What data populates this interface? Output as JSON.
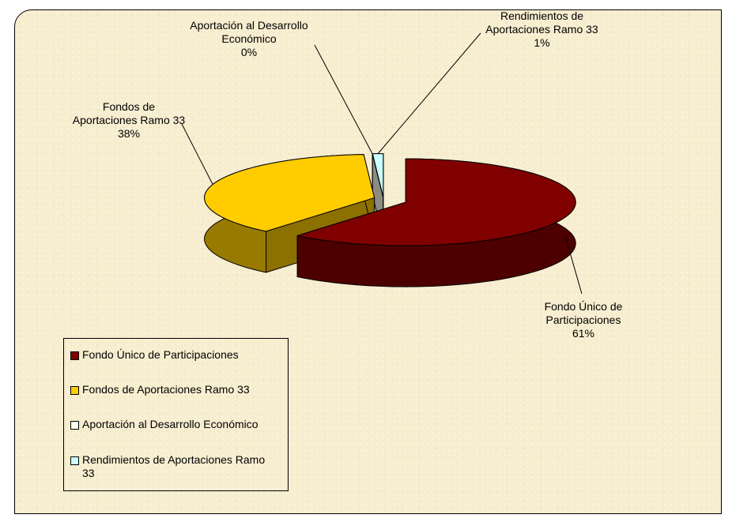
{
  "chart_data": {
    "type": "pie",
    "categories": [
      "Fondo Único de Participaciones",
      "Fondos de Aportaciones Ramo 33",
      "Aportación al Desarrollo Económico",
      "Rendimientos de Aportaciones Ramo 33"
    ],
    "values": [
      61,
      38,
      0,
      1
    ],
    "value_labels": [
      "61%",
      "38%",
      "0%",
      "1%"
    ],
    "colors": [
      "#800000",
      "#ffcc00",
      "#ffffee",
      "#ccffff"
    ],
    "legend": "bottom-left"
  }
}
